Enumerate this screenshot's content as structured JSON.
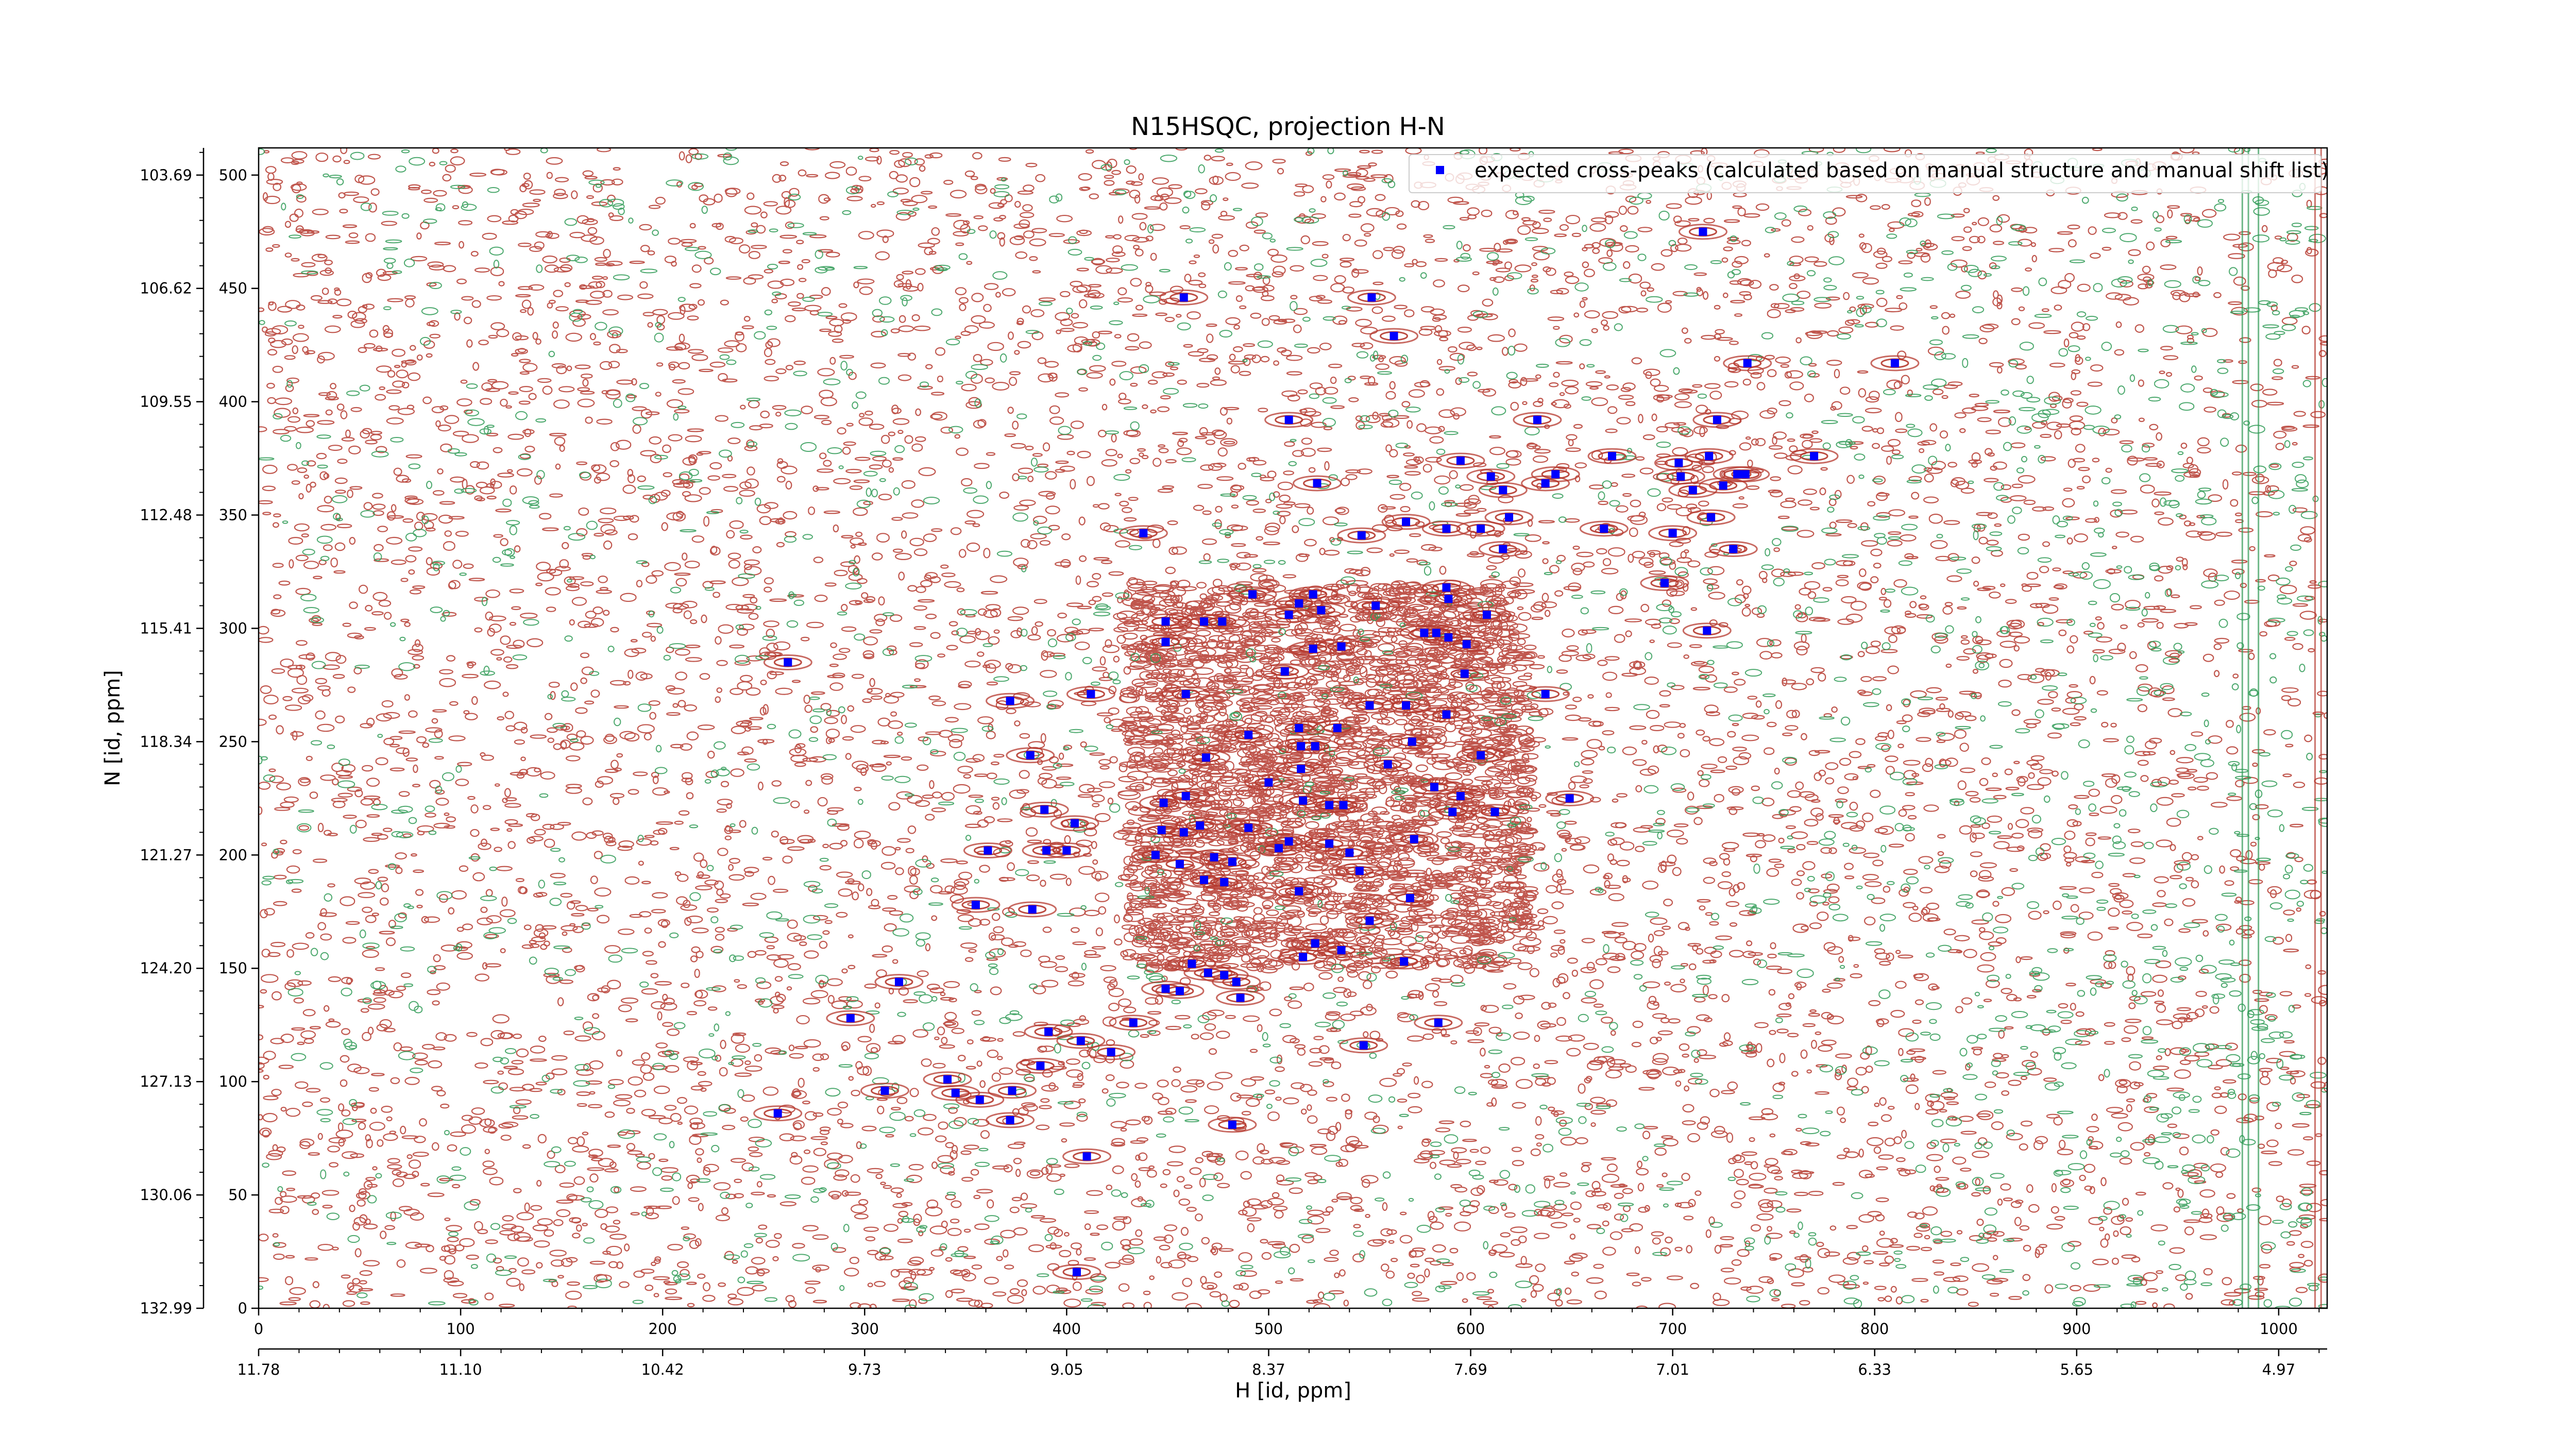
{
  "chart_data": {
    "type": "scatter",
    "title": "N15HSQC, projection H-N",
    "xlabel": "H [id, ppm]",
    "ylabel": "N [id, ppm]",
    "xlim": [
      0,
      1024
    ],
    "ylim": [
      0,
      512
    ],
    "x_index_ticks": [
      0,
      100,
      200,
      300,
      400,
      500,
      600,
      700,
      800,
      900,
      1000
    ],
    "x_ppm_tick_labels": [
      "11.78",
      "11.10",
      "10.42",
      "9.73",
      "9.05",
      "8.37",
      "7.69",
      "7.01",
      "6.33",
      "5.65",
      "4.97"
    ],
    "y_index_ticks": [
      0,
      50,
      100,
      150,
      200,
      250,
      300,
      350,
      400,
      450,
      500
    ],
    "y_ppm_tick_labels": [
      "132.99",
      "130.06",
      "127.13",
      "124.20",
      "121.27",
      "118.34",
      "115.41",
      "112.48",
      "109.55",
      "106.62",
      "103.69"
    ],
    "legend": {
      "position": "top-right",
      "entries": [
        "expected cross-peaks (calculated based on manual structure and manual shift list)"
      ]
    },
    "background": "2D NMR contour spectrum (positive contours red, negative contours green)",
    "series": [
      {
        "name": "expected cross-peaks (calculated based on manual structure and manual shift list)",
        "color": "#0000ff",
        "marker": "square",
        "points": [
          [
            458,
            446
          ],
          [
            551,
            446
          ],
          [
            562,
            429
          ],
          [
            715,
            475
          ],
          [
            737,
            417
          ],
          [
            810,
            417
          ],
          [
            510,
            392
          ],
          [
            633,
            392
          ],
          [
            595,
            374
          ],
          [
            670,
            376
          ],
          [
            703,
            373
          ],
          [
            718,
            376
          ],
          [
            722,
            392
          ],
          [
            732,
            368
          ],
          [
            736,
            368
          ],
          [
            770,
            376
          ],
          [
            524,
            364
          ],
          [
            610,
            367
          ],
          [
            616,
            361
          ],
          [
            637,
            364
          ],
          [
            642,
            368
          ],
          [
            704,
            367
          ],
          [
            710,
            361
          ],
          [
            725,
            363
          ],
          [
            438,
            342
          ],
          [
            546,
            341
          ],
          [
            568,
            347
          ],
          [
            588,
            344
          ],
          [
            605,
            344
          ],
          [
            619,
            349
          ],
          [
            616,
            335
          ],
          [
            666,
            344
          ],
          [
            700,
            342
          ],
          [
            719,
            349
          ],
          [
            730,
            335
          ],
          [
            492,
            315
          ],
          [
            510,
            306
          ],
          [
            515,
            311
          ],
          [
            522,
            315
          ],
          [
            526,
            308
          ],
          [
            588,
            318
          ],
          [
            589,
            313
          ],
          [
            608,
            306
          ],
          [
            468,
            303
          ],
          [
            477,
            303
          ],
          [
            449,
            303
          ],
          [
            553,
            310
          ],
          [
            577,
            298
          ],
          [
            583,
            298
          ],
          [
            589,
            296
          ],
          [
            598,
            293
          ],
          [
            696,
            320
          ],
          [
            717,
            299
          ],
          [
            262,
            285
          ],
          [
            449,
            294
          ],
          [
            522,
            291
          ],
          [
            536,
            292
          ],
          [
            508,
            281
          ],
          [
            597,
            280
          ],
          [
            372,
            268
          ],
          [
            412,
            271
          ],
          [
            459,
            271
          ],
          [
            637,
            271
          ],
          [
            550,
            266
          ],
          [
            568,
            266
          ],
          [
            534,
            256
          ],
          [
            515,
            256
          ],
          [
            490,
            253
          ],
          [
            588,
            262
          ],
          [
            605,
            244
          ],
          [
            382,
            244
          ],
          [
            469,
            243
          ],
          [
            516,
            248
          ],
          [
            523,
            248
          ],
          [
            559,
            240
          ],
          [
            571,
            250
          ],
          [
            516,
            238
          ],
          [
            582,
            230
          ],
          [
            595,
            226
          ],
          [
            500,
            232
          ],
          [
            448,
            223
          ],
          [
            459,
            226
          ],
          [
            466,
            213
          ],
          [
            517,
            224
          ],
          [
            530,
            222
          ],
          [
            537,
            222
          ],
          [
            591,
            219
          ],
          [
            612,
            219
          ],
          [
            649,
            225
          ],
          [
            389,
            220
          ],
          [
            404,
            214
          ],
          [
            447,
            211
          ],
          [
            458,
            210
          ],
          [
            490,
            212
          ],
          [
            400,
            202
          ],
          [
            444,
            200
          ],
          [
            505,
            203
          ],
          [
            510,
            206
          ],
          [
            530,
            205
          ],
          [
            572,
            207
          ],
          [
            540,
            201
          ],
          [
            473,
            199
          ],
          [
            482,
            197
          ],
          [
            456,
            196
          ],
          [
            468,
            189
          ],
          [
            478,
            188
          ],
          [
            390,
            202
          ],
          [
            361,
            202
          ],
          [
            545,
            193
          ],
          [
            570,
            181
          ],
          [
            355,
            178
          ],
          [
            383,
            176
          ],
          [
            515,
            184
          ],
          [
            550,
            171
          ],
          [
            523,
            161
          ],
          [
            536,
            158
          ],
          [
            517,
            155
          ],
          [
            567,
            153
          ],
          [
            462,
            152
          ],
          [
            470,
            148
          ],
          [
            478,
            147
          ],
          [
            449,
            141
          ],
          [
            456,
            140
          ],
          [
            484,
            144
          ],
          [
            486,
            137
          ],
          [
            317,
            144
          ],
          [
            293,
            128
          ],
          [
            433,
            126
          ],
          [
            584,
            126
          ],
          [
            391,
            122
          ],
          [
            407,
            118
          ],
          [
            422,
            113
          ],
          [
            547,
            116
          ],
          [
            387,
            107
          ],
          [
            341,
            101
          ],
          [
            345,
            95
          ],
          [
            357,
            92
          ],
          [
            373,
            96
          ],
          [
            310,
            96
          ],
          [
            257,
            86
          ],
          [
            372,
            83
          ],
          [
            482,
            81
          ],
          [
            410,
            67
          ],
          [
            405,
            16
          ]
        ]
      }
    ]
  }
}
